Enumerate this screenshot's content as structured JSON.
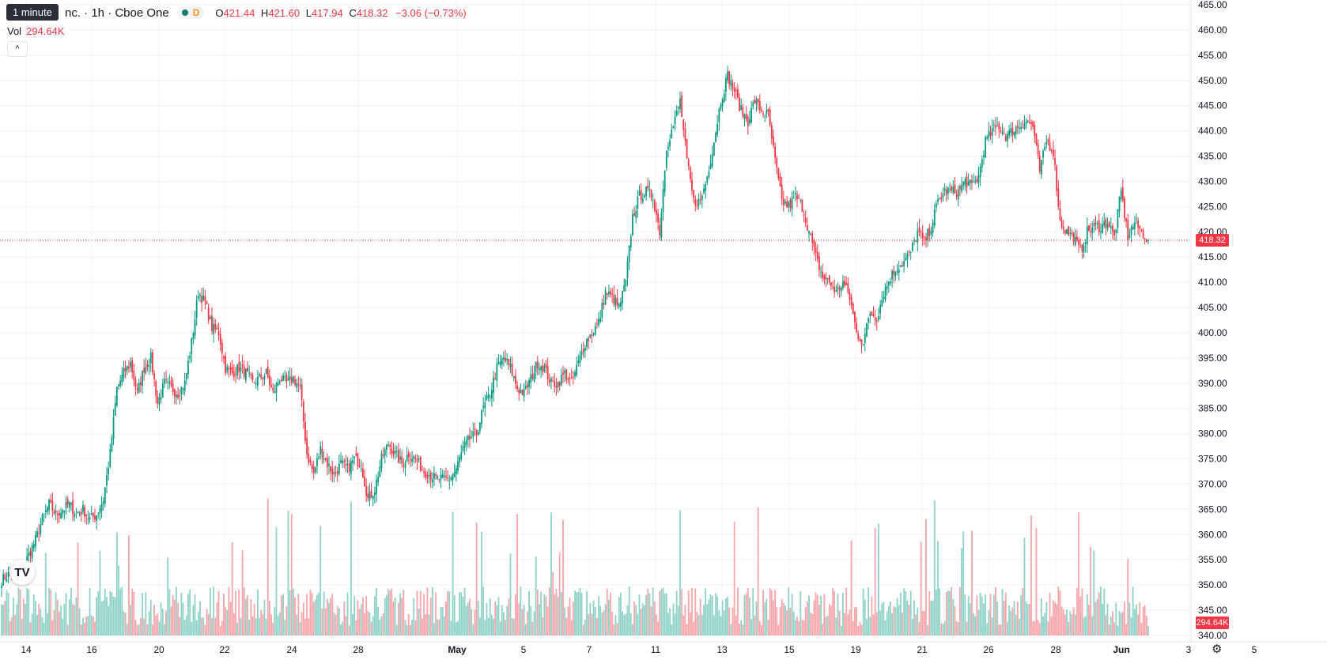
{
  "legend": {
    "symbol": "nc. · 1h · Cboe One",
    "o_key": "O",
    "o_val": "421.44",
    "h_key": "H",
    "h_val": "421.60",
    "l_key": "L",
    "l_val": "417.94",
    "c_key": "C",
    "c_val": "418.32",
    "change": "−3.06 (−0.73%)",
    "data_status": "D"
  },
  "tooltip": "1 minute",
  "volume": {
    "label": "Vol",
    "value": "294.64K"
  },
  "last_price_tag": "418.32",
  "volume_tag": "294.64K",
  "logo": "TV",
  "settings_icon": "⚙",
  "colors": {
    "up": "#089981",
    "down": "#f23645",
    "vol_up": "#8fd2c8",
    "vol_down": "#f7a5aa"
  },
  "chart_data": {
    "type": "candlestick",
    "timeframe": "1h",
    "y_range": [
      340,
      465
    ],
    "y_ticks": [
      "465.00",
      "460.00",
      "455.00",
      "450.00",
      "445.00",
      "440.00",
      "435.00",
      "430.00",
      "425.00",
      "420.00",
      "415.00",
      "410.00",
      "405.00",
      "400.00",
      "395.00",
      "390.00",
      "385.00",
      "380.00",
      "375.00",
      "370.00",
      "365.00",
      "360.00",
      "355.00",
      "350.00",
      "345.00",
      "340.00"
    ],
    "x_ticks": [
      "14",
      "16",
      "20",
      "22",
      "24",
      "28",
      "May",
      "5",
      "7",
      "11",
      "13",
      "15",
      "19",
      "21",
      "26",
      "28",
      "Jun",
      "3",
      "5"
    ],
    "last_price": 418.32,
    "price_anchors": [
      [
        0,
        351
      ],
      [
        4,
        352
      ],
      [
        8,
        351
      ],
      [
        12,
        353
      ],
      [
        16,
        356
      ],
      [
        20,
        359
      ],
      [
        24,
        363
      ],
      [
        28,
        366
      ],
      [
        32,
        364
      ],
      [
        36,
        365
      ],
      [
        40,
        366
      ],
      [
        44,
        364
      ],
      [
        48,
        365
      ],
      [
        52,
        363
      ],
      [
        56,
        364
      ],
      [
        60,
        367
      ],
      [
        64,
        376
      ],
      [
        68,
        389
      ],
      [
        72,
        392
      ],
      [
        76,
        394
      ],
      [
        80,
        388
      ],
      [
        84,
        393
      ],
      [
        88,
        395
      ],
      [
        92,
        386
      ],
      [
        96,
        390
      ],
      [
        100,
        389
      ],
      [
        104,
        388
      ],
      [
        108,
        390
      ],
      [
        112,
        398
      ],
      [
        116,
        408
      ],
      [
        120,
        406
      ],
      [
        124,
        401
      ],
      [
        128,
        400
      ],
      [
        132,
        393
      ],
      [
        136,
        392
      ],
      [
        140,
        393
      ],
      [
        144,
        392
      ],
      [
        148,
        390
      ],
      [
        152,
        391
      ],
      [
        156,
        392
      ],
      [
        160,
        388
      ],
      [
        164,
        391
      ],
      [
        168,
        390
      ],
      [
        172,
        391
      ],
      [
        176,
        389
      ],
      [
        180,
        376
      ],
      [
        184,
        372
      ],
      [
        188,
        377
      ],
      [
        192,
        374
      ],
      [
        196,
        372
      ],
      [
        200,
        374
      ],
      [
        204,
        373
      ],
      [
        208,
        375
      ],
      [
        212,
        374
      ],
      [
        216,
        367
      ],
      [
        220,
        369
      ],
      [
        224,
        375
      ],
      [
        228,
        378
      ],
      [
        232,
        376
      ],
      [
        236,
        374
      ],
      [
        240,
        376
      ],
      [
        244,
        375
      ],
      [
        248,
        373
      ],
      [
        252,
        372
      ],
      [
        256,
        371
      ],
      [
        260,
        371
      ],
      [
        264,
        371
      ],
      [
        268,
        373
      ],
      [
        272,
        377
      ],
      [
        276,
        379
      ],
      [
        280,
        380
      ],
      [
        284,
        385
      ],
      [
        288,
        388
      ],
      [
        292,
        393
      ],
      [
        296,
        395
      ],
      [
        300,
        393
      ],
      [
        304,
        389
      ],
      [
        308,
        388
      ],
      [
        312,
        391
      ],
      [
        316,
        394
      ],
      [
        320,
        393
      ],
      [
        324,
        390
      ],
      [
        328,
        390
      ],
      [
        332,
        392
      ],
      [
        336,
        390
      ],
      [
        340,
        394
      ],
      [
        344,
        398
      ],
      [
        348,
        400
      ],
      [
        352,
        402
      ],
      [
        356,
        408
      ],
      [
        360,
        407
      ],
      [
        364,
        405
      ],
      [
        368,
        410
      ],
      [
        372,
        423
      ],
      [
        376,
        427
      ],
      [
        380,
        428
      ],
      [
        384,
        427
      ],
      [
        388,
        420
      ],
      [
        392,
        437
      ],
      [
        396,
        441
      ],
      [
        400,
        446
      ],
      [
        404,
        434
      ],
      [
        408,
        426
      ],
      [
        412,
        426
      ],
      [
        416,
        431
      ],
      [
        420,
        438
      ],
      [
        424,
        446
      ],
      [
        428,
        451
      ],
      [
        432,
        448
      ],
      [
        436,
        444
      ],
      [
        440,
        442
      ],
      [
        444,
        446
      ],
      [
        448,
        444
      ],
      [
        452,
        443
      ],
      [
        456,
        434
      ],
      [
        460,
        426
      ],
      [
        464,
        425
      ],
      [
        468,
        427
      ],
      [
        472,
        425
      ],
      [
        476,
        420
      ],
      [
        480,
        415
      ],
      [
        484,
        411
      ],
      [
        488,
        410
      ],
      [
        492,
        408
      ],
      [
        496,
        410
      ],
      [
        500,
        407
      ],
      [
        504,
        400
      ],
      [
        508,
        398
      ],
      [
        512,
        404
      ],
      [
        516,
        403
      ],
      [
        520,
        408
      ],
      [
        524,
        411
      ],
      [
        528,
        413
      ],
      [
        532,
        414
      ],
      [
        536,
        416
      ],
      [
        540,
        420
      ],
      [
        544,
        418
      ],
      [
        548,
        421
      ],
      [
        552,
        426
      ],
      [
        556,
        428
      ],
      [
        560,
        428
      ],
      [
        564,
        428
      ],
      [
        568,
        430
      ],
      [
        572,
        429
      ],
      [
        576,
        431
      ],
      [
        580,
        438
      ],
      [
        584,
        440
      ],
      [
        588,
        441
      ],
      [
        592,
        439
      ],
      [
        596,
        440
      ],
      [
        600,
        441
      ],
      [
        604,
        442
      ],
      [
        608,
        441
      ],
      [
        612,
        432
      ],
      [
        616,
        438
      ],
      [
        620,
        436
      ],
      [
        624,
        422
      ],
      [
        628,
        420
      ],
      [
        632,
        419
      ],
      [
        636,
        416
      ],
      [
        640,
        420
      ],
      [
        644,
        421
      ],
      [
        648,
        421
      ],
      [
        652,
        422
      ],
      [
        656,
        419
      ],
      [
        660,
        428
      ],
      [
        664,
        419
      ],
      [
        668,
        422
      ],
      [
        672,
        420
      ],
      [
        676,
        418.32
      ]
    ]
  }
}
